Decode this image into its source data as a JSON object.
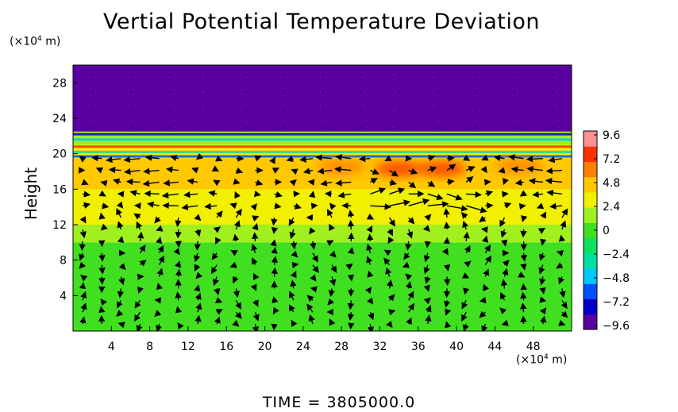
{
  "chart_data": {
    "type": "heatmap",
    "title": "Vertial Potential Temperature Deviation",
    "ylabel": "Height",
    "y_unit_base": "(×10",
    "y_unit_exp": "4",
    "y_unit_tail": " m)",
    "x_unit_base": "(×10",
    "x_unit_exp": "4",
    "x_unit_tail": " m)",
    "x_range": [
      0,
      52
    ],
    "y_range": [
      0,
      30
    ],
    "x_ticks": [
      4,
      8,
      12,
      16,
      20,
      24,
      28,
      32,
      36,
      40,
      44,
      48
    ],
    "y_ticks": [
      4,
      8,
      12,
      16,
      20,
      24,
      28
    ],
    "colorbar": {
      "range": [
        -9.6,
        9.6
      ],
      "ticks": [
        "9.6",
        "7.2",
        "4.8",
        "2.4",
        "0",
        "−2.4",
        "−4.8",
        "−7.2",
        "−9.6"
      ],
      "colors": [
        "#5a00a0",
        "#0000c8",
        "#0050ff",
        "#00c8ff",
        "#00e0a0",
        "#10e060",
        "#40e020",
        "#a0f020",
        "#f0f000",
        "#ffc800",
        "#ff8000",
        "#ff3000",
        "#ff9090"
      ]
    },
    "layers": [
      {
        "y_from": 0,
        "y_to": 10,
        "value": 0.3
      },
      {
        "y_from": 10,
        "y_to": 12,
        "value": 1.4
      },
      {
        "y_from": 12,
        "y_to": 16,
        "value": 2.6
      },
      {
        "y_from": 16,
        "y_to": 19.5,
        "value": 4.0
      },
      {
        "y_from": 19.5,
        "y_to": 21,
        "value": 3.0
      },
      {
        "y_from": 21,
        "y_to": 22.5,
        "value": 1.0
      },
      {
        "y_from": 22.5,
        "y_to": 30,
        "value": -9.6
      }
    ],
    "warm_patches": [
      {
        "x": 28,
        "y": 18.5,
        "value": 6.5
      },
      {
        "x": 34,
        "y": 18.3,
        "value": 7.0
      },
      {
        "x": 38.5,
        "y": 18.3,
        "value": 7.5
      },
      {
        "x": 46.5,
        "y": 18.6,
        "value": 6.0
      }
    ],
    "vector_field": {
      "dx": 2,
      "dy": 1.333,
      "description": "wind arrows"
    }
  },
  "footer": {
    "time_label": "TIME",
    "equals": "=",
    "time_value": "3805000.0"
  }
}
